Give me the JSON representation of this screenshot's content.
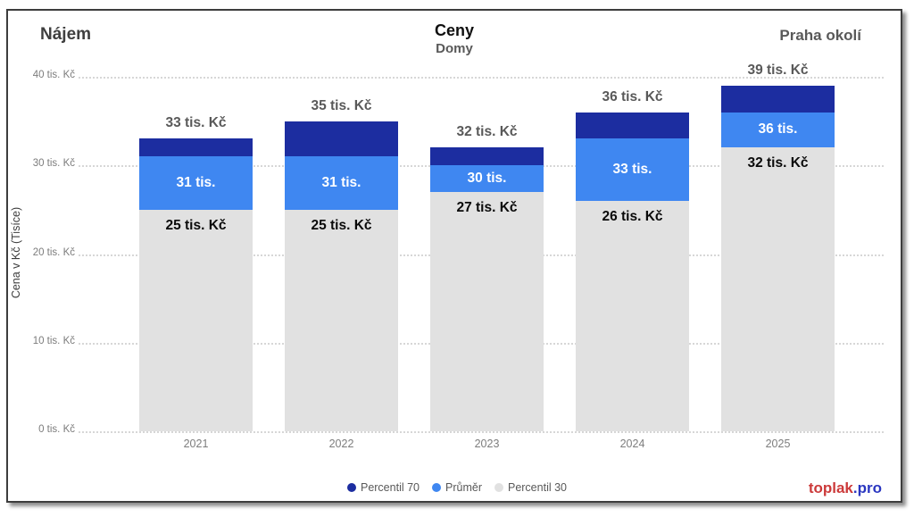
{
  "header": {
    "left_title": "Nájem",
    "center_title": "Ceny",
    "center_subtitle": "Domy",
    "right_title": "Praha okolí"
  },
  "legend": [
    {
      "label": "Percentil 70",
      "color": "#1c2da0"
    },
    {
      "label": "Průměr",
      "color": "#3f87f1"
    },
    {
      "label": "Percentil 30",
      "color": "#e1e1e1"
    }
  ],
  "brand": {
    "name": "toplak",
    "tld": ".pro",
    "name_color": "#cc3a3a",
    "tld_color": "#2a36c0"
  },
  "chart_data": {
    "type": "bar",
    "title": "Ceny",
    "subtitle": "Domy",
    "left_header": "Nájem",
    "right_header": "Praha okolí",
    "ylabel": "Cena v Kč (Tisíce)",
    "ylim": [
      0,
      40
    ],
    "y_ticks": [
      0,
      10,
      20,
      30,
      40
    ],
    "y_tick_labels": [
      "0 tis. Kč",
      "10 tis. Kč",
      "20 tis. Kč",
      "30 tis. Kč",
      "40 tis. Kč"
    ],
    "grid": true,
    "grid_style": "dotted",
    "legend_position": "bottom",
    "categories": [
      "2021",
      "2022",
      "2023",
      "2024",
      "2025"
    ],
    "series": [
      {
        "name": "Percentil 70",
        "color": "#1c2da0",
        "values": [
          33,
          35,
          32,
          36,
          39
        ],
        "labels": [
          "33 tis. Kč",
          "35 tis. Kč",
          "32 tis. Kč",
          "36 tis. Kč",
          "39 tis. Kč"
        ],
        "label_color": "#595959",
        "label_position": "above-bar"
      },
      {
        "name": "Průměr",
        "color": "#3f87f1",
        "values": [
          31,
          31,
          30,
          33,
          36
        ],
        "labels": [
          "31 tis.",
          "31 tis.",
          "30 tis.",
          "33 tis.",
          "36 tis."
        ],
        "label_color": "#ffffff",
        "label_position": "inside-blue-band"
      },
      {
        "name": "Percentil 30",
        "color": "#e1e1e1",
        "values": [
          25,
          25,
          27,
          26,
          32
        ],
        "labels": [
          "25 tis. Kč",
          "25 tis. Kč",
          "27 tis. Kč",
          "26 tis. Kč",
          "32 tis. Kč"
        ],
        "label_color": "#0a0a0a",
        "label_position": "inside-gray-band-top"
      }
    ]
  }
}
